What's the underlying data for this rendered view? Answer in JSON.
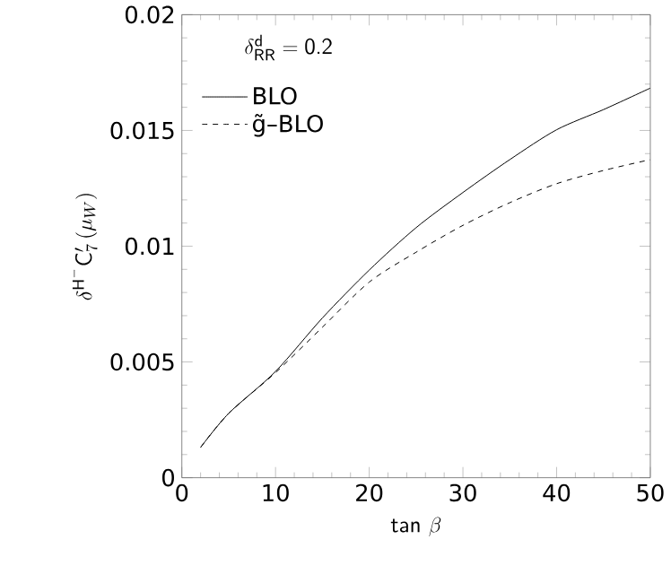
{
  "chart_data": {
    "type": "line",
    "xlabel": "\\mathsf{tan}\\ \\beta",
    "ylabel": "\\delta^{\\mathsf{H}^-}\\mathsf{C}_7'\\,(\\mu_W)",
    "annotations": [
      "\\delta^{\\mathsf{d}}_{\\mathsf{RR}}=\\mathsf{0.2}"
    ],
    "x": [
      2,
      5,
      10,
      15,
      20,
      25,
      30,
      35,
      40,
      45,
      50
    ],
    "series": [
      {
        "name": "BLO",
        "color": "#000000",
        "line_style": "solid",
        "values": [
          0.00131,
          0.00278,
          0.00459,
          0.0069,
          0.00897,
          0.0108,
          0.01232,
          0.01374,
          0.01503,
          0.0159,
          0.01683
        ]
      },
      {
        "name": "g̃–BLO",
        "color": "#000000",
        "line_style": "dashed",
        "values": [
          0.00131,
          0.00278,
          0.00454,
          0.0065,
          0.00845,
          0.00974,
          0.0109,
          0.01188,
          0.0127,
          0.01327,
          0.01374
        ]
      }
    ],
    "xlim": [
      0,
      50
    ],
    "xticks": [
      0,
      10,
      20,
      30,
      40,
      50
    ],
    "ylim": [
      0,
      0.02
    ],
    "yticks": [
      0,
      0.005,
      0.01,
      0.015,
      0.02
    ],
    "legend": "top left",
    "grid": false,
    "marker": "none"
  }
}
